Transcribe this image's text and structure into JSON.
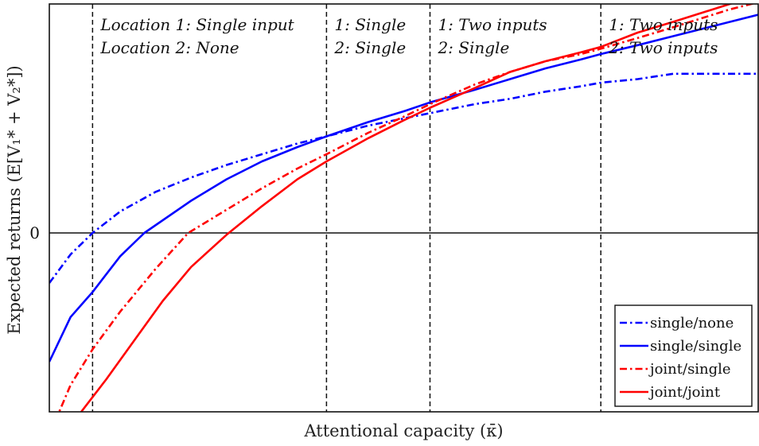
{
  "chart_data": {
    "type": "line",
    "title": "",
    "xlabel": "Attentional capacity (κ̄)",
    "ylabel": "Expected returns (E[V₁* + V₂*])",
    "xlim": [
      0,
      1
    ],
    "ylim": [
      -1,
      1.28
    ],
    "y_ticks": [
      {
        "value": 0,
        "label": "0"
      }
    ],
    "regime_boundaries": [
      0.061,
      0.391,
      0.537,
      0.778
    ],
    "regimes": [
      {
        "line1": "Location 1: Single input",
        "line2": "Location 2: None"
      },
      {
        "line1": "1: Single",
        "line2": "2: Single"
      },
      {
        "line1": "1: Two inputs",
        "line2": "2: Single"
      },
      {
        "line1": "1: Two inputs",
        "line2": "2: Two inputs"
      }
    ],
    "grid": false,
    "legend_position": "bottom-right",
    "series": [
      {
        "name": "single/none",
        "color": "#0000ff",
        "dash": "dash-dot",
        "x": [
          0,
          0.03,
          0.061,
          0.1,
          0.15,
          0.2,
          0.25,
          0.3,
          0.35,
          0.391,
          0.45,
          0.5,
          0.537,
          0.6,
          0.65,
          0.7,
          0.75,
          0.778,
          0.83,
          0.88,
          0.92,
          0.96,
          1.0
        ],
        "y": [
          -0.28,
          -0.12,
          0.0,
          0.12,
          0.23,
          0.31,
          0.38,
          0.44,
          0.5,
          0.54,
          0.6,
          0.64,
          0.67,
          0.72,
          0.75,
          0.79,
          0.82,
          0.84,
          0.86,
          0.89,
          0.89,
          0.89,
          0.89
        ]
      },
      {
        "name": "single/single",
        "color": "#0000ff",
        "dash": "solid",
        "x": [
          0,
          0.03,
          0.061,
          0.1,
          0.134,
          0.2,
          0.25,
          0.3,
          0.35,
          0.391,
          0.45,
          0.5,
          0.537,
          0.6,
          0.65,
          0.7,
          0.75,
          0.778,
          0.83,
          0.88,
          0.92,
          0.96,
          1.0
        ],
        "y": [
          -0.72,
          -0.47,
          -0.33,
          -0.13,
          0.0,
          0.18,
          0.3,
          0.4,
          0.48,
          0.54,
          0.62,
          0.68,
          0.73,
          0.8,
          0.86,
          0.92,
          0.97,
          1.0,
          1.05,
          1.1,
          1.14,
          1.18,
          1.22
        ]
      },
      {
        "name": "joint/single",
        "color": "#ff0000",
        "dash": "dash-dot",
        "x": [
          0,
          0.03,
          0.061,
          0.1,
          0.15,
          0.196,
          0.25,
          0.3,
          0.35,
          0.391,
          0.45,
          0.5,
          0.537,
          0.6,
          0.65,
          0.7,
          0.75,
          0.778,
          0.83,
          0.88,
          0.92,
          0.96,
          1.0
        ],
        "y": [
          -1.13,
          -0.85,
          -0.65,
          -0.44,
          -0.2,
          0.0,
          0.13,
          0.25,
          0.36,
          0.44,
          0.56,
          0.65,
          0.72,
          0.83,
          0.9,
          0.96,
          1.0,
          1.03,
          1.09,
          1.15,
          1.2,
          1.25,
          1.29
        ]
      },
      {
        "name": "joint/joint",
        "color": "#ff0000",
        "dash": "solid",
        "x": [
          0.045,
          0.08,
          0.12,
          0.16,
          0.2,
          0.25,
          0.3,
          0.35,
          0.391,
          0.45,
          0.5,
          0.537,
          0.6,
          0.65,
          0.7,
          0.75,
          0.778,
          0.83,
          0.88,
          0.92,
          0.96,
          1.0
        ],
        "y": [
          -1.0,
          -0.82,
          -0.6,
          -0.38,
          -0.19,
          -0.01,
          0.15,
          0.3,
          0.4,
          0.53,
          0.63,
          0.7,
          0.81,
          0.9,
          0.96,
          1.01,
          1.04,
          1.12,
          1.18,
          1.23,
          1.28,
          1.33
        ]
      }
    ]
  }
}
